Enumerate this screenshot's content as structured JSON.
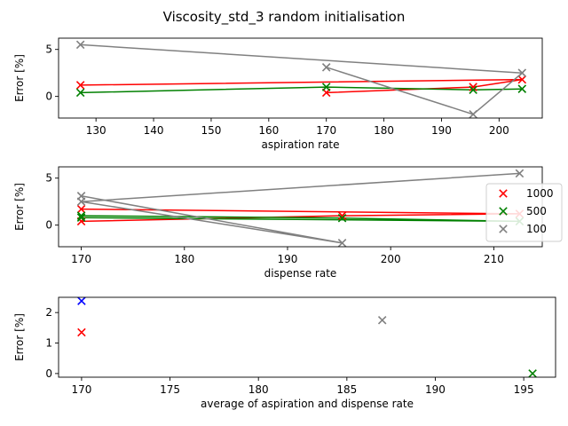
{
  "chart_data": {
    "title": "Viscosity_std_3 random initialisation",
    "colors": {
      "1000": "#ff0000",
      "500": "#008000",
      "100": "#808080",
      "other": "#0000ff"
    },
    "legend": {
      "placement": "center-right of panel 2",
      "entries": [
        {
          "label": "1000",
          "series": "1000"
        },
        {
          "label": "500",
          "series": "500"
        },
        {
          "label": "100",
          "series": "100"
        }
      ]
    },
    "panels": [
      {
        "type": "line+scatter",
        "xlabel": "aspiration rate",
        "ylabel": "Error [%]",
        "xlim": [
          123.5,
          207.5
        ],
        "ylim": [
          -2.3,
          6.2
        ],
        "xticks": [
          130,
          140,
          150,
          160,
          170,
          180,
          190,
          200
        ],
        "yticks": [
          0,
          5
        ],
        "series": [
          {
            "name": "1000",
            "x": [
              127.3,
              170.0,
              195.5,
              204.0
            ],
            "y": [
              1.2,
              0.4,
              1.0,
              1.8
            ],
            "line_order": [
              0,
              3,
              2,
              1
            ]
          },
          {
            "name": "500",
            "x": [
              127.3,
              170.0,
              195.5,
              204.0
            ],
            "y": [
              0.4,
              1.0,
              0.7,
              0.8
            ],
            "line_order": [
              0,
              1,
              2,
              3
            ]
          },
          {
            "name": "100",
            "x": [
              127.3,
              170.0,
              195.5,
              204.0
            ],
            "y": [
              5.5,
              3.1,
              -1.9,
              2.5
            ],
            "line_order": [
              0,
              3,
              2,
              1
            ]
          }
        ]
      },
      {
        "type": "line+scatter",
        "xlabel": "dispense rate",
        "ylabel": "Error [%]",
        "xlim": [
          167.8,
          214.7
        ],
        "ylim": [
          -2.3,
          6.2
        ],
        "xticks": [
          170,
          180,
          190,
          200,
          210
        ],
        "yticks": [
          0,
          5
        ],
        "series": [
          {
            "name": "1000",
            "x": [
              170.0,
              170.0,
              195.3,
              212.5
            ],
            "y": [
              1.7,
              0.4,
              1.0,
              1.2
            ],
            "line_order": [
              0,
              3,
              2,
              1
            ]
          },
          {
            "name": "500",
            "x": [
              170.0,
              170.0,
              195.3,
              212.5
            ],
            "y": [
              1.0,
              0.8,
              0.75,
              0.4
            ],
            "line_order": [
              0,
              2,
              3,
              1
            ]
          },
          {
            "name": "100",
            "x": [
              170.0,
              170.0,
              195.3,
              212.5
            ],
            "y": [
              3.1,
              2.5,
              -1.9,
              5.5
            ],
            "line_order": [
              3,
              1,
              2,
              0
            ]
          }
        ]
      },
      {
        "type": "scatter",
        "xlabel": "average of aspiration and dispense rate",
        "ylabel": "Error [%]",
        "xlim": [
          168.7,
          196.8
        ],
        "ylim": [
          -0.12,
          2.5
        ],
        "xticks": [
          170,
          175,
          180,
          185,
          190,
          195
        ],
        "yticks": [
          0,
          1,
          2
        ],
        "series": [
          {
            "name": "other",
            "x": [
              170.0
            ],
            "y": [
              2.38
            ]
          },
          {
            "name": "1000",
            "x": [
              170.0
            ],
            "y": [
              1.35
            ]
          },
          {
            "name": "100",
            "x": [
              187.0
            ],
            "y": [
              1.75
            ]
          },
          {
            "name": "500",
            "x": [
              195.5
            ],
            "y": [
              0.0
            ]
          }
        ]
      }
    ]
  }
}
